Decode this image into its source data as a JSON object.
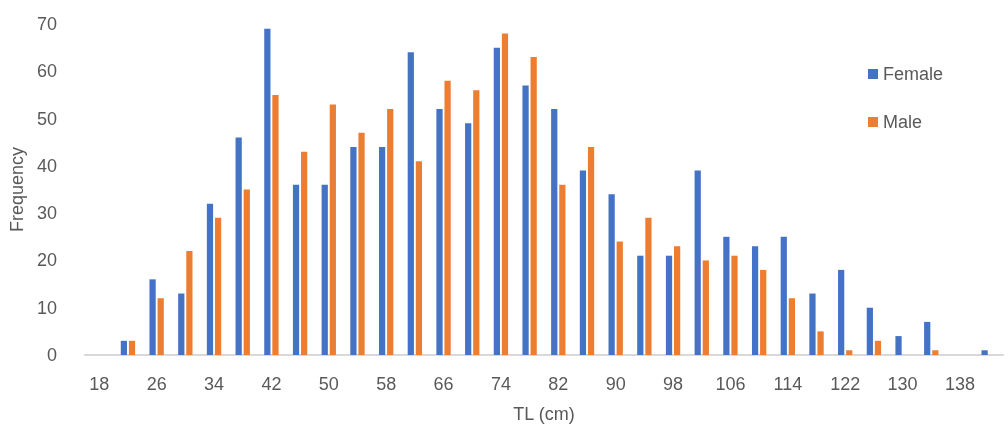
{
  "chart_data": {
    "type": "bar",
    "xlabel": "TL (cm)",
    "ylabel": "Frequency",
    "categories": [
      "18",
      null,
      "26",
      null,
      "34",
      null,
      "42",
      null,
      "50",
      null,
      "58",
      null,
      "66",
      null,
      "74",
      null,
      "82",
      null,
      "90",
      null,
      "98",
      null,
      "106",
      null,
      "114",
      null,
      "122",
      null,
      "130",
      null,
      "138",
      null
    ],
    "series": [
      {
        "name": "Female",
        "color": "#4472c4",
        "values": [
          0,
          3,
          16,
          13,
          32,
          46,
          69,
          36,
          36,
          44,
          44,
          64,
          52,
          49,
          65,
          57,
          52,
          39,
          34,
          21,
          21,
          39,
          25,
          23,
          25,
          13,
          18,
          10,
          4,
          7,
          0,
          1
        ]
      },
      {
        "name": "Male",
        "color": "#ed7d31",
        "values": [
          0,
          3,
          12,
          22,
          29,
          35,
          55,
          43,
          53,
          47,
          52,
          41,
          58,
          56,
          68,
          63,
          36,
          44,
          24,
          29,
          23,
          20,
          21,
          18,
          12,
          5,
          1,
          3,
          0,
          1,
          0,
          0
        ]
      }
    ],
    "ylim": [
      0,
      70
    ],
    "yticks": [
      0,
      10,
      20,
      30,
      40,
      50,
      60,
      70
    ],
    "grid": false,
    "legend": "top right"
  }
}
